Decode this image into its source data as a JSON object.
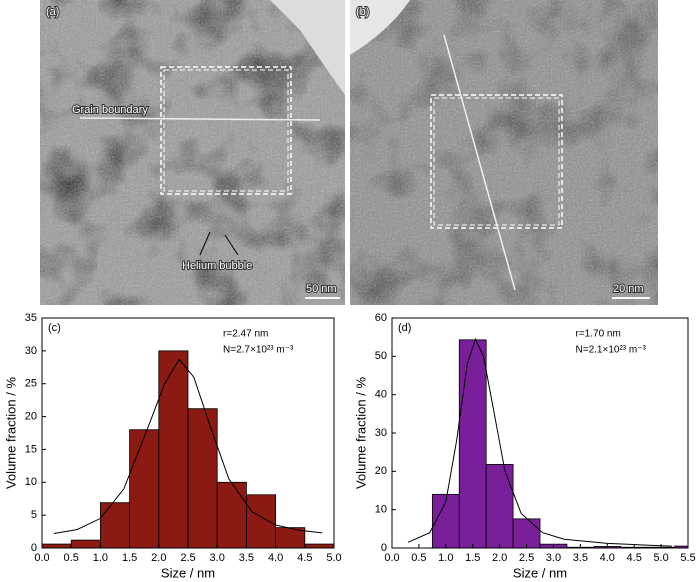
{
  "images": [
    {
      "label": "(a)",
      "annotations": [
        "Grain boundary",
        "Helium bubble"
      ],
      "scale_bar": "50 nm"
    },
    {
      "label": "(b)",
      "scale_bar": "20 nm"
    }
  ],
  "chart_data": [
    {
      "type": "histogram",
      "panel_label": "(c)",
      "x_label": "Size / nm",
      "y_label": "Volume fraction / %",
      "annotations": [
        "r=2.47 nm",
        "N=2.7×10²³ m⁻³"
      ],
      "bins": [
        0,
        0.5,
        1.0,
        1.5,
        2.0,
        2.5,
        3.0,
        3.5,
        4.0,
        4.5,
        5.0
      ],
      "values": [
        0.6,
        1.2,
        6.9,
        18,
        30,
        21.2,
        10,
        8.1,
        3.1,
        0.6
      ],
      "color": "#8b1a12",
      "fit": {
        "x": [
          0.2,
          0.6,
          1.0,
          1.4,
          1.8,
          2.1,
          2.35,
          2.6,
          2.9,
          3.2,
          3.6,
          4.0,
          4.4,
          4.8
        ],
        "values": [
          2.2,
          2.8,
          4.5,
          9,
          18,
          25,
          28.7,
          26,
          18,
          10.5,
          5.5,
          3.5,
          2.7,
          2.3
        ]
      },
      "xlim": [
        0,
        5
      ],
      "ylim": [
        0,
        35
      ],
      "xticks": [
        {
          "value": 0,
          "label": "0.0"
        },
        0.5,
        {
          "value": 1,
          "label": "1.0"
        },
        1.5,
        {
          "value": 2,
          "label": "2.0"
        },
        2.5,
        {
          "value": 3,
          "label": "3.0"
        },
        3.5,
        {
          "value": 4,
          "label": "4.0"
        },
        4.5,
        {
          "value": 5,
          "label": "5.0"
        }
      ],
      "yticks": [
        0,
        5,
        10,
        15,
        20,
        25,
        30,
        35
      ]
    },
    {
      "type": "histogram",
      "panel_label": "(d)",
      "x_label": "Size / nm",
      "y_label": "Volume fraction / %",
      "annotations": [
        "r=1.70 nm",
        "N=2.1×10²³ m⁻³"
      ],
      "bins": [
        0.75,
        1.25,
        1.75,
        2.25,
        2.75,
        3.25,
        3.75,
        4.25,
        4.75,
        5.25,
        5.75
      ],
      "values": [
        14,
        54.3,
        21.8,
        7.6,
        1.0,
        0.2,
        0.4,
        0.2,
        0.2,
        0.5
      ],
      "color": "#7a1f9a",
      "fit": {
        "x": [
          0.3,
          0.7,
          1.0,
          1.2,
          1.4,
          1.55,
          1.7,
          1.9,
          2.1,
          2.4,
          2.8,
          3.2,
          4,
          5,
          5.2
        ],
        "values": [
          1.5,
          4,
          12,
          28,
          48,
          54.5,
          50,
          35,
          20,
          9,
          4,
          2.3,
          1.2,
          0.6,
          0.5
        ]
      },
      "xlim": [
        0,
        5.5
      ],
      "ylim": [
        0,
        60
      ],
      "xticks": [
        {
          "value": 0,
          "label": "0.0"
        },
        0.5,
        {
          "value": 1,
          "label": "1.0"
        },
        1.5,
        {
          "value": 2,
          "label": "2.0"
        },
        2.5,
        {
          "value": 3,
          "label": "3.0"
        },
        3.5,
        {
          "value": 4,
          "label": "4.0"
        },
        4.5,
        {
          "value": 5,
          "label": "5.0"
        },
        5.5
      ],
      "yticks": [
        0,
        10,
        20,
        30,
        40,
        50,
        60
      ]
    }
  ]
}
